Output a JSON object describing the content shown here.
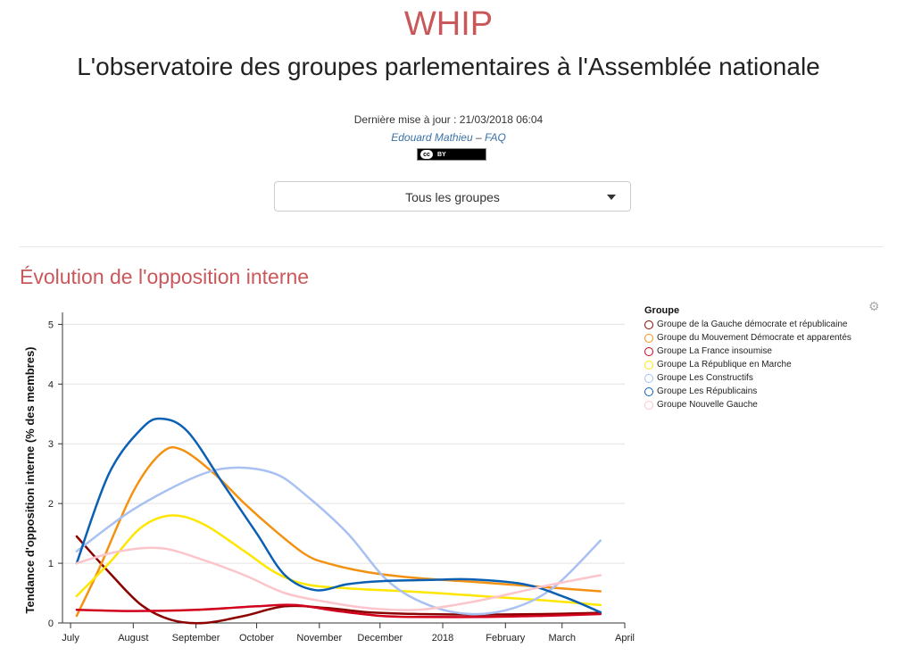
{
  "header": {
    "title": "WHIP",
    "subtitle": "L'observatoire des groupes parlementaires à l'Assemblée nationale",
    "updated": "Dernière mise à jour : 21/03/2018 06:04",
    "author_link": "Edouard Mathieu",
    "separator": "–",
    "faq_link": "FAQ",
    "license_cc": "cc",
    "license_by": "BY"
  },
  "group_select": {
    "selected": "Tous les groupes"
  },
  "section": {
    "title": "Évolution de l'opposition interne"
  },
  "toolbar": {
    "gear_icon": "gear-icon"
  },
  "chart_data": {
    "type": "line",
    "title": "",
    "ylabel": "Tendance d'opposition interne (% des membres)",
    "xlabel": "",
    "ylim": [
      0,
      5.2
    ],
    "xlim": [
      "2017-06-27",
      "2018-04-01"
    ],
    "x_ticks": [
      {
        "date": "2017-07-01",
        "label": "July"
      },
      {
        "date": "2017-08-01",
        "label": "August"
      },
      {
        "date": "2017-09-01",
        "label": "September"
      },
      {
        "date": "2017-10-01",
        "label": "October"
      },
      {
        "date": "2017-11-01",
        "label": "November"
      },
      {
        "date": "2017-12-01",
        "label": "December"
      },
      {
        "date": "2018-01-01",
        "label": "2018"
      },
      {
        "date": "2018-02-01",
        "label": "February"
      },
      {
        "date": "2018-03-01",
        "label": "March"
      },
      {
        "date": "2018-04-01",
        "label": "April"
      }
    ],
    "y_ticks": [
      0,
      1,
      2,
      3,
      4,
      5
    ],
    "grid": true,
    "legend": {
      "title": "Groupe",
      "position": "right"
    },
    "series": [
      {
        "name": "Groupe de la Gauche démocrate et républicaine",
        "color": "#8b0000",
        "points": [
          [
            "2017-07-04",
            1.45
          ],
          [
            "2017-07-20",
            0.85
          ],
          [
            "2017-08-05",
            0.3
          ],
          [
            "2017-08-20",
            0.05
          ],
          [
            "2017-09-05",
            0.0
          ],
          [
            "2017-09-25",
            0.12
          ],
          [
            "2017-10-15",
            0.28
          ],
          [
            "2017-11-05",
            0.25
          ],
          [
            "2017-11-25",
            0.18
          ],
          [
            "2017-12-20",
            0.15
          ],
          [
            "2018-01-20",
            0.14
          ],
          [
            "2018-02-20",
            0.15
          ],
          [
            "2018-03-20",
            0.17
          ]
        ]
      },
      {
        "name": "Groupe du Mouvement Démocrate et apparentés",
        "color": "#f39212",
        "points": [
          [
            "2017-07-04",
            0.12
          ],
          [
            "2017-07-15",
            0.9
          ],
          [
            "2017-08-01",
            2.2
          ],
          [
            "2017-08-15",
            2.85
          ],
          [
            "2017-08-25",
            2.9
          ],
          [
            "2017-09-10",
            2.5
          ],
          [
            "2017-09-25",
            2.0
          ],
          [
            "2017-10-10",
            1.55
          ],
          [
            "2017-10-25",
            1.15
          ],
          [
            "2017-11-05",
            1.0
          ],
          [
            "2017-11-25",
            0.85
          ],
          [
            "2017-12-20",
            0.75
          ],
          [
            "2018-01-20",
            0.68
          ],
          [
            "2018-02-20",
            0.6
          ],
          [
            "2018-03-20",
            0.53
          ]
        ]
      },
      {
        "name": "Groupe La France insoumise",
        "color": "#d1001c",
        "points": [
          [
            "2017-07-04",
            0.22
          ],
          [
            "2017-08-01",
            0.2
          ],
          [
            "2017-09-01",
            0.22
          ],
          [
            "2017-10-01",
            0.28
          ],
          [
            "2017-10-20",
            0.3
          ],
          [
            "2017-11-10",
            0.2
          ],
          [
            "2017-12-01",
            0.12
          ],
          [
            "2017-12-20",
            0.1
          ],
          [
            "2018-01-20",
            0.1
          ],
          [
            "2018-02-20",
            0.12
          ],
          [
            "2018-03-20",
            0.15
          ]
        ]
      },
      {
        "name": "Groupe La République en Marche",
        "color": "#ffe600",
        "points": [
          [
            "2017-07-04",
            0.45
          ],
          [
            "2017-07-20",
            1.0
          ],
          [
            "2017-08-05",
            1.6
          ],
          [
            "2017-08-20",
            1.8
          ],
          [
            "2017-09-05",
            1.65
          ],
          [
            "2017-09-25",
            1.2
          ],
          [
            "2017-10-10",
            0.85
          ],
          [
            "2017-10-25",
            0.65
          ],
          [
            "2017-11-15",
            0.58
          ],
          [
            "2017-12-20",
            0.52
          ],
          [
            "2018-01-20",
            0.45
          ],
          [
            "2018-02-20",
            0.38
          ],
          [
            "2018-03-20",
            0.3
          ]
        ]
      },
      {
        "name": "Groupe Les Constructifs",
        "color": "#a9c1f2",
        "points": [
          [
            "2017-07-04",
            1.2
          ],
          [
            "2017-08-01",
            1.9
          ],
          [
            "2017-09-01",
            2.45
          ],
          [
            "2017-09-20",
            2.6
          ],
          [
            "2017-10-10",
            2.5
          ],
          [
            "2017-10-25",
            2.15
          ],
          [
            "2017-11-15",
            1.5
          ],
          [
            "2017-12-05",
            0.7
          ],
          [
            "2017-12-25",
            0.3
          ],
          [
            "2018-01-15",
            0.15
          ],
          [
            "2018-02-05",
            0.25
          ],
          [
            "2018-02-25",
            0.6
          ],
          [
            "2018-03-20",
            1.38
          ]
        ]
      },
      {
        "name": "Groupe Les Républicains",
        "color": "#0c60b4",
        "points": [
          [
            "2017-07-04",
            1.0
          ],
          [
            "2017-07-20",
            2.5
          ],
          [
            "2017-08-05",
            3.25
          ],
          [
            "2017-08-15",
            3.42
          ],
          [
            "2017-08-28",
            3.2
          ],
          [
            "2017-09-15",
            2.3
          ],
          [
            "2017-10-01",
            1.5
          ],
          [
            "2017-10-15",
            0.8
          ],
          [
            "2017-10-30",
            0.55
          ],
          [
            "2017-11-15",
            0.65
          ],
          [
            "2017-12-01",
            0.7
          ],
          [
            "2017-12-25",
            0.72
          ],
          [
            "2018-01-15",
            0.73
          ],
          [
            "2018-02-10",
            0.65
          ],
          [
            "2018-03-01",
            0.45
          ],
          [
            "2018-03-20",
            0.18
          ]
        ]
      },
      {
        "name": "Groupe Nouvelle Gauche",
        "color": "#fcc4cb",
        "points": [
          [
            "2017-07-04",
            1.0
          ],
          [
            "2017-07-25",
            1.2
          ],
          [
            "2017-08-15",
            1.25
          ],
          [
            "2017-09-05",
            1.05
          ],
          [
            "2017-09-25",
            0.8
          ],
          [
            "2017-10-15",
            0.5
          ],
          [
            "2017-11-05",
            0.35
          ],
          [
            "2017-11-25",
            0.25
          ],
          [
            "2017-12-20",
            0.22
          ],
          [
            "2018-01-15",
            0.35
          ],
          [
            "2018-02-05",
            0.5
          ],
          [
            "2018-02-25",
            0.65
          ],
          [
            "2018-03-20",
            0.8
          ]
        ]
      }
    ]
  }
}
